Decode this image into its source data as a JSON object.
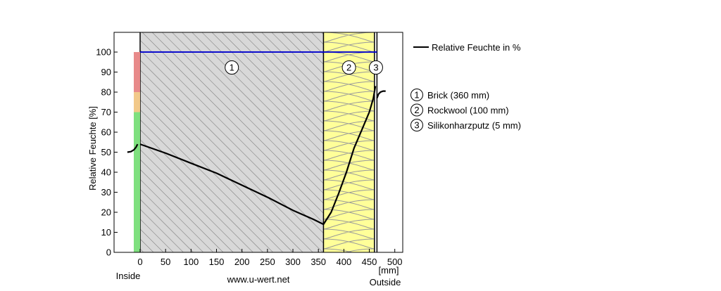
{
  "chart_data": {
    "type": "line",
    "ylabel": "Relative Feuchte [%]",
    "xunit": "[mm]",
    "xlim": [
      -10,
      500
    ],
    "ylim": [
      0,
      105
    ],
    "x_ticks": [
      0,
      50,
      100,
      150,
      200,
      250,
      300,
      350,
      400,
      450,
      500
    ],
    "y_ticks": [
      0,
      10,
      20,
      30,
      40,
      50,
      60,
      70,
      80,
      90,
      100
    ],
    "grid": false,
    "legend_position": "right",
    "series": [
      {
        "name": "Relative Feuchte in %",
        "color": "#000000",
        "x": [
          0,
          50,
          100,
          150,
          200,
          250,
          300,
          340,
          360,
          375,
          390,
          405,
          420,
          435,
          450,
          458,
          462
        ],
        "y": [
          54,
          49.5,
          44.5,
          39.5,
          33.5,
          27.5,
          21,
          16.5,
          14,
          20,
          29.5,
          40,
          52,
          61,
          70,
          77,
          83
        ]
      }
    ],
    "saturation_line": {
      "value": 100,
      "x_range": [
        0,
        465
      ],
      "color": "#0000cc"
    },
    "boundary_curves": {
      "inside": {
        "x": [
          -25,
          -18,
          -12,
          -8,
          -5
        ],
        "y": [
          50,
          50.3,
          51.2,
          52.5,
          54
        ]
      },
      "outside": {
        "x": [
          465,
          468,
          472,
          477,
          482
        ],
        "y": [
          77,
          79,
          80,
          80.5,
          80.5
        ]
      }
    },
    "layers": [
      {
        "number": "1",
        "label": "Brick (360 mm)",
        "start": 0,
        "end": 360,
        "fill": "#d8d8d8",
        "pattern": "hatch"
      },
      {
        "number": "2",
        "label": "Rockwool (100 mm)",
        "start": 360,
        "end": 460,
        "fill": "#ffff99",
        "pattern": "insulation"
      },
      {
        "number": "3",
        "label": "Silikonharzputz (5 mm)",
        "start": 460,
        "end": 465,
        "fill": "#ffffff",
        "pattern": "none"
      }
    ],
    "comfort_bar": [
      {
        "from": 0,
        "to": 70,
        "color": "#7fe07f"
      },
      {
        "from": 70,
        "to": 80,
        "color": "#f2c98a"
      },
      {
        "from": 80,
        "to": 100,
        "color": "#e88a8a"
      }
    ],
    "annotations": {
      "inside": "Inside",
      "outside": "Outside",
      "source": "www.u-wert.net"
    }
  }
}
